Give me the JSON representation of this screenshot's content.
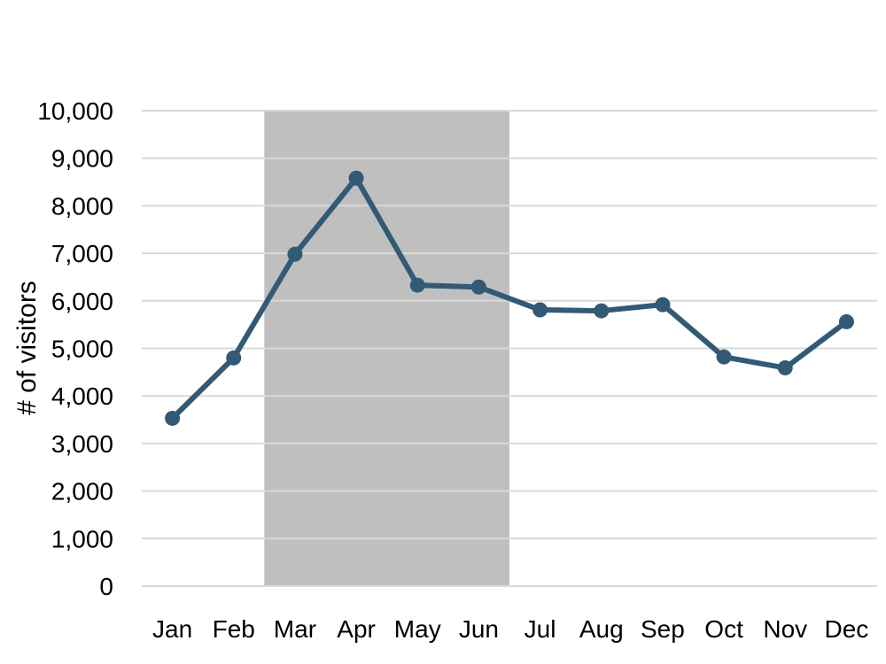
{
  "chart_data": {
    "type": "line",
    "title": "",
    "xlabel": "",
    "ylabel": "# of visitors",
    "categories": [
      "Jan",
      "Feb",
      "Mar",
      "Apr",
      "May",
      "Jun",
      "Jul",
      "Aug",
      "Sep",
      "Oct",
      "Nov",
      "Dec"
    ],
    "series": [
      {
        "values": [
          3530,
          4800,
          6980,
          8580,
          6330,
          6290,
          5810,
          5790,
          5920,
          4820,
          4590,
          5560
        ],
        "color": "#325a75"
      }
    ],
    "ylim": [
      0,
      10000
    ],
    "yticks": [
      0,
      1000,
      2000,
      3000,
      4000,
      5000,
      6000,
      7000,
      8000,
      9000,
      10000
    ],
    "ytick_labels": [
      "0",
      "1,000",
      "2,000",
      "3,000",
      "4,000",
      "5,000",
      "6,000",
      "7,000",
      "8,000",
      "9,000",
      "10,000"
    ],
    "highlight_band": {
      "from_category": "Mar",
      "to_category": "Jun",
      "color": "#bfbfbf"
    },
    "grid": true,
    "gridline_color": "#d9d9d9",
    "legend": "none"
  }
}
